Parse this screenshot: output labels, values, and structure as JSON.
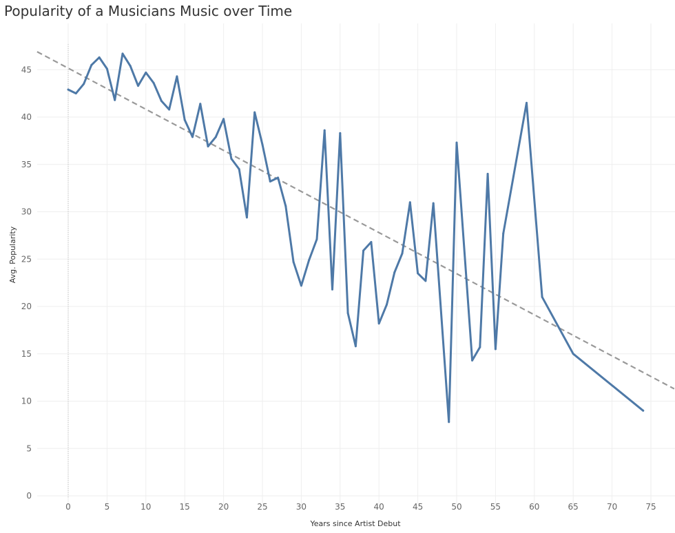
{
  "chart_data": {
    "type": "line",
    "title": "Popularity of a Musicians Music over Time",
    "xlabel": "Years since Artist Debut",
    "ylabel": "Avg. Popularity",
    "xlim": [
      -4,
      78
    ],
    "ylim": [
      -1,
      49
    ],
    "x_ticks": [
      0,
      5,
      10,
      15,
      20,
      25,
      30,
      35,
      40,
      45,
      50,
      55,
      60,
      65,
      70,
      75
    ],
    "y_ticks": [
      0,
      5,
      10,
      15,
      20,
      25,
      30,
      35,
      40,
      45
    ],
    "grid": true,
    "colors": {
      "series": "#4e79a7",
      "trend": "#999999",
      "grid": "#eeeeee",
      "zero_line": "#bbbbbb"
    },
    "series": [
      {
        "x": [
          0,
          1,
          2,
          3,
          4,
          5,
          6,
          7,
          8,
          9,
          10,
          11,
          12,
          13,
          14,
          15,
          16,
          17,
          18,
          19,
          20,
          21,
          22,
          23,
          24,
          25,
          26,
          27,
          28,
          29,
          30,
          31,
          32,
          33,
          34,
          35,
          36,
          37,
          38,
          39,
          40,
          41,
          42,
          43,
          44,
          45,
          46,
          47,
          49,
          50,
          52,
          53,
          54,
          55,
          56,
          59,
          61,
          65,
          74
        ],
        "y": [
          42.9,
          42.5,
          43.5,
          45.5,
          46.3,
          45.1,
          41.8,
          46.7,
          45.4,
          43.3,
          44.7,
          43.6,
          41.7,
          40.8,
          44.3,
          39.7,
          37.9,
          41.4,
          36.9,
          37.9,
          39.8,
          35.6,
          34.5,
          29.4,
          40.5,
          37.1,
          33.2,
          33.6,
          30.6,
          24.7,
          22.2,
          24.9,
          27.1,
          38.6,
          21.8,
          38.3,
          19.3,
          15.8,
          25.9,
          26.8,
          18.2,
          20.2,
          23.6,
          25.6,
          31.0,
          23.5,
          22.7,
          30.9,
          7.8,
          37.3,
          14.3,
          15.7,
          34.0,
          15.5,
          27.7,
          41.5,
          21.0,
          15.0,
          9.0
        ]
      }
    ],
    "trend_line": {
      "x": [
        -4,
        78
      ],
      "y": [
        46.9,
        11.3
      ]
    }
  }
}
